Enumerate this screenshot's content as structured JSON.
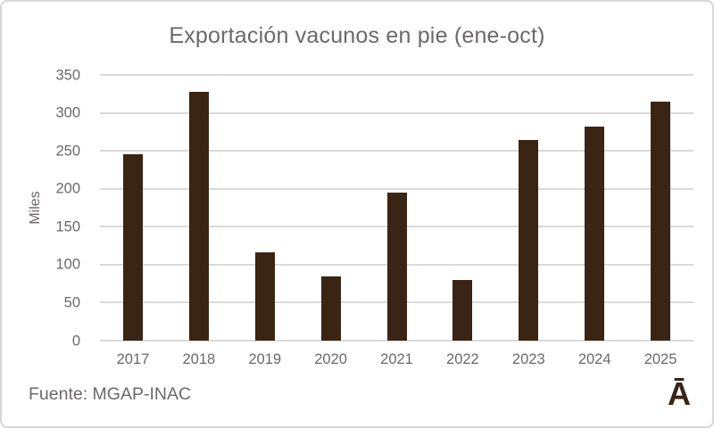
{
  "chart_data": {
    "type": "bar",
    "title": "Exportación vacunos en pie (ene-oct)",
    "ylabel": "Miles",
    "xlabel": "",
    "categories": [
      "2017",
      "2018",
      "2019",
      "2020",
      "2021",
      "2022",
      "2023",
      "2024",
      "2025"
    ],
    "values": [
      245,
      328,
      116,
      85,
      195,
      80,
      264,
      282,
      315
    ],
    "yticks": [
      0,
      50,
      100,
      150,
      200,
      250,
      300,
      350
    ],
    "ylim": [
      0,
      350
    ],
    "grid": true,
    "legend": false,
    "bar_color": "#3A2515"
  },
  "footer": {
    "source": "Fuente: MGAP-INAC",
    "logo_glyph": "Ā"
  },
  "colors": {
    "bar": "#3A2515",
    "text": "#6E6868",
    "gridline": "#DCD9D9",
    "frame_border": "#D8D6D6",
    "background": "#FFFFFF",
    "logo": "#3A2515"
  }
}
